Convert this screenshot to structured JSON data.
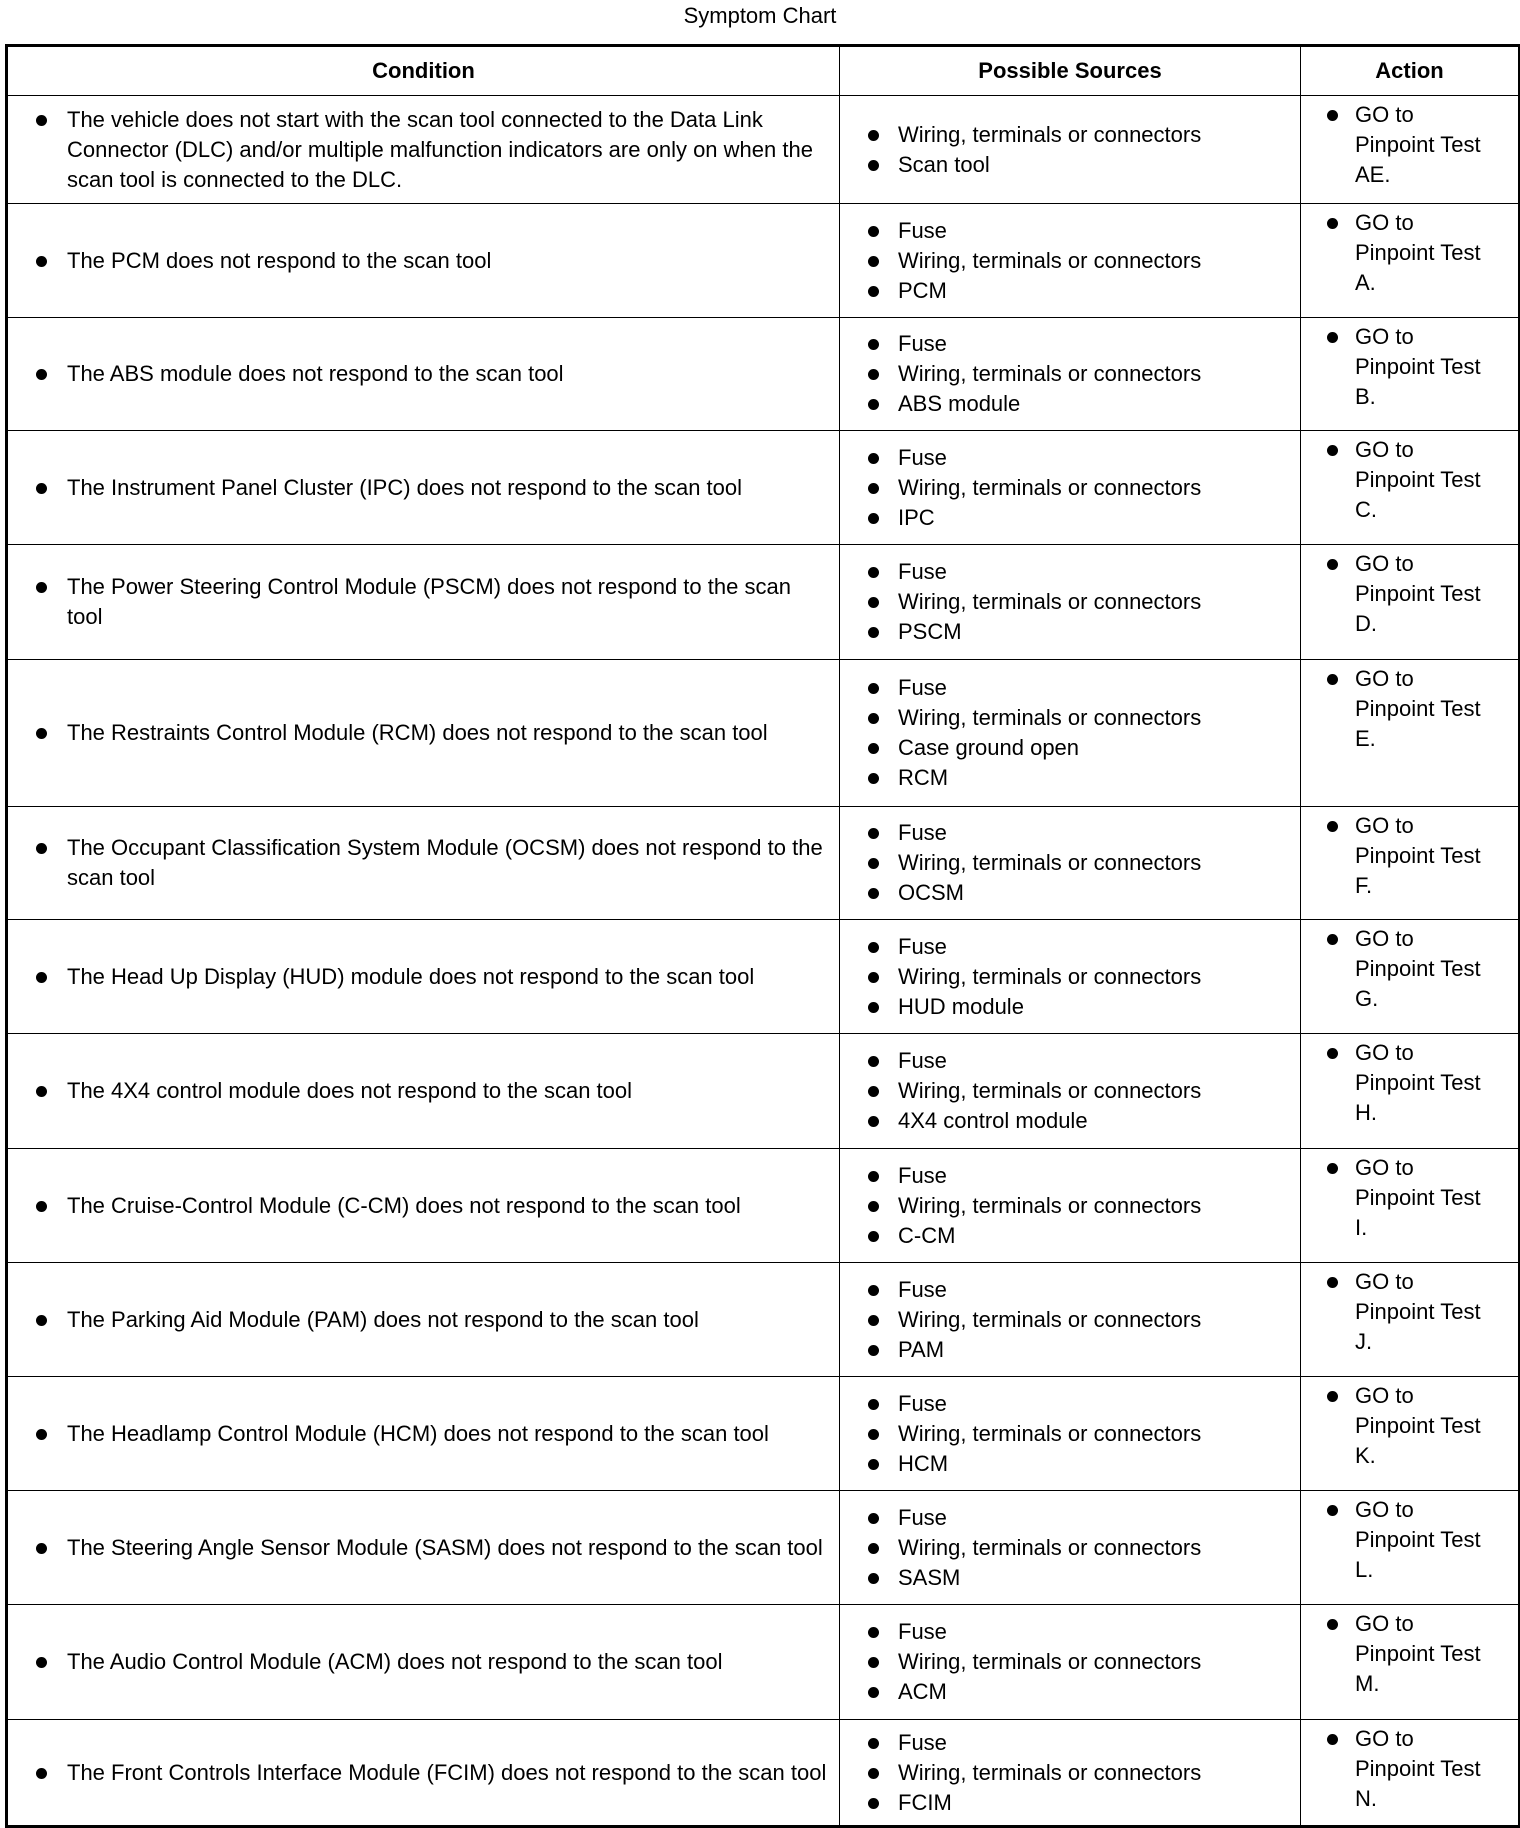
{
  "title": "Symptom Chart",
  "headers": {
    "condition": "Condition",
    "sources": "Possible Sources",
    "action": "Action"
  },
  "rows": [
    {
      "condition": "The vehicle does not start with the scan tool connected to the Data Link Connector (DLC) and/or multiple malfunction indicators are only on when the scan tool is connected to the DLC.",
      "sources": [
        "Wiring, terminals or connectors",
        "Scan tool"
      ],
      "action": "GO to Pinpoint Test AE."
    },
    {
      "condition": "The PCM does not respond to the scan tool",
      "sources": [
        "Fuse",
        "Wiring, terminals or connectors",
        "PCM"
      ],
      "action": "GO to Pinpoint Test A."
    },
    {
      "condition": "The ABS module does not respond to the scan tool",
      "sources": [
        "Fuse",
        "Wiring, terminals or connectors",
        "ABS module"
      ],
      "action": "GO to Pinpoint Test B."
    },
    {
      "condition": "The Instrument Panel Cluster (IPC) does not respond to the scan tool",
      "sources": [
        "Fuse",
        "Wiring, terminals or connectors",
        "IPC"
      ],
      "action": "GO to Pinpoint Test C."
    },
    {
      "condition": "The Power Steering Control Module (PSCM) does not respond to the scan tool",
      "sources": [
        "Fuse",
        "Wiring, terminals or connectors",
        "PSCM"
      ],
      "action": "GO to Pinpoint Test D."
    },
    {
      "condition": "The Restraints Control Module (RCM) does not respond to the scan tool",
      "sources": [
        "Fuse",
        "Wiring, terminals or connectors",
        "Case ground open",
        "RCM"
      ],
      "action": "GO to Pinpoint Test E."
    },
    {
      "condition": "The Occupant Classification System Module (OCSM) does not respond to the scan tool",
      "sources": [
        "Fuse",
        "Wiring, terminals or connectors",
        "OCSM"
      ],
      "action": "GO to Pinpoint Test F."
    },
    {
      "condition": "The Head Up Display (HUD) module does not respond to the scan tool",
      "sources": [
        "Fuse",
        "Wiring, terminals or connectors",
        "HUD module"
      ],
      "action": "GO to Pinpoint Test G."
    },
    {
      "condition": "The 4X4 control module does not respond to the scan tool",
      "sources": [
        "Fuse",
        "Wiring, terminals or connectors",
        "4X4 control module"
      ],
      "action": "GO to Pinpoint Test H."
    },
    {
      "condition": "The Cruise-Control Module (C-CM) does not respond to the scan tool",
      "sources": [
        "Fuse",
        "Wiring, terminals or connectors",
        "C-CM"
      ],
      "action": "GO to Pinpoint Test I."
    },
    {
      "condition": "The Parking Aid Module (PAM) does not respond to the scan tool",
      "sources": [
        "Fuse",
        "Wiring, terminals or connectors",
        "PAM"
      ],
      "action": "GO to Pinpoint Test J."
    },
    {
      "condition": "The Headlamp Control Module (HCM) does not respond to the scan tool",
      "sources": [
        "Fuse",
        "Wiring, terminals or connectors",
        "HCM"
      ],
      "action": "GO to Pinpoint Test K."
    },
    {
      "condition": "The Steering Angle Sensor Module (SASM) does not respond to the scan tool",
      "sources": [
        "Fuse",
        "Wiring, terminals or connectors",
        "SASM"
      ],
      "action": "GO to Pinpoint Test L."
    },
    {
      "condition": "The Audio Control Module (ACM) does not respond to the scan tool",
      "sources": [
        "Fuse",
        "Wiring, terminals or connectors",
        "ACM"
      ],
      "action": "GO to Pinpoint Test M."
    },
    {
      "condition": "The Front Controls Interface Module (FCIM) does not respond to the scan tool",
      "sources": [
        "Fuse",
        "Wiring, terminals or connectors",
        "FCIM"
      ],
      "action": "GO to Pinpoint Test N."
    }
  ]
}
